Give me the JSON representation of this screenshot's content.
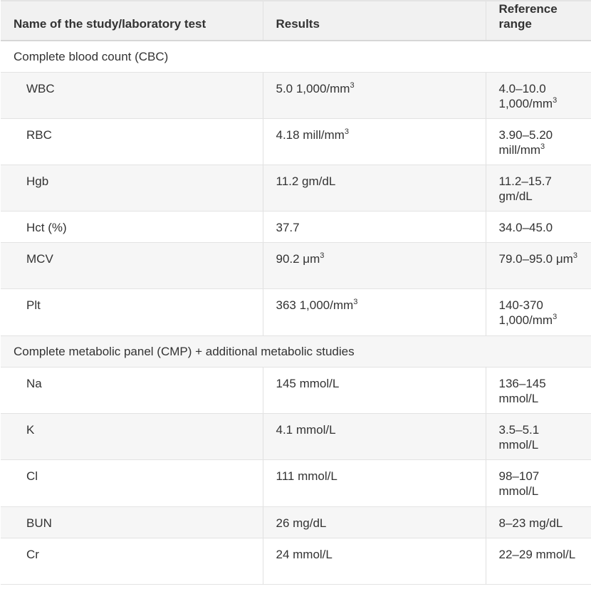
{
  "headers": {
    "name": "Name of the study/laboratory test",
    "results": "Results",
    "reference": "Reference range"
  },
  "sections": [
    {
      "title": "Complete blood count (CBC)",
      "rows": [
        {
          "name": "WBC",
          "result": "5.0 1,000/mm",
          "result_sup": "3",
          "ref": "4.0–10.0 1,000/mm",
          "ref_sup": "3"
        },
        {
          "name": "RBC",
          "result": "4.18 mill/mm",
          "result_sup": "3",
          "ref": "3.90–5.20 mill/mm",
          "ref_sup": "3"
        },
        {
          "name": "Hgb",
          "result": "11.2 gm/dL",
          "result_sup": "",
          "ref": "11.2–15.7 gm/dL",
          "ref_sup": ""
        },
        {
          "name": "Hct (%)",
          "result": "37.7",
          "result_sup": "",
          "ref": "34.0–45.0",
          "ref_sup": ""
        },
        {
          "name": "MCV",
          "result": "90.2 μm",
          "result_sup": "3",
          "ref": "79.0–95.0 μm",
          "ref_sup": "3"
        },
        {
          "name": "Plt",
          "result": "363 1,000/mm",
          "result_sup": "3",
          "ref": "140-370 1,000/mm",
          "ref_sup": "3"
        }
      ]
    },
    {
      "title": "Complete metabolic panel (CMP) + additional metabolic studies",
      "rows": [
        {
          "name": "Na",
          "result": "145 mmol/L",
          "result_sup": "",
          "ref": "136–145 mmol/L",
          "ref_sup": ""
        },
        {
          "name": "K",
          "result": "4.1 mmol/L",
          "result_sup": "",
          "ref": "3.5–5.1 mmol/L",
          "ref_sup": ""
        },
        {
          "name": "Cl",
          "result": "111 mmol/L",
          "result_sup": "",
          "ref": "98–107 mmol/L",
          "ref_sup": ""
        },
        {
          "name": "BUN",
          "result": "26 mg/dL",
          "result_sup": "",
          "ref": "8–23 mg/dL",
          "ref_sup": ""
        },
        {
          "name": "Cr",
          "result": "24 mmol/L",
          "result_sup": "",
          "ref": "22–29 mmol/L",
          "ref_sup": ""
        }
      ]
    }
  ]
}
